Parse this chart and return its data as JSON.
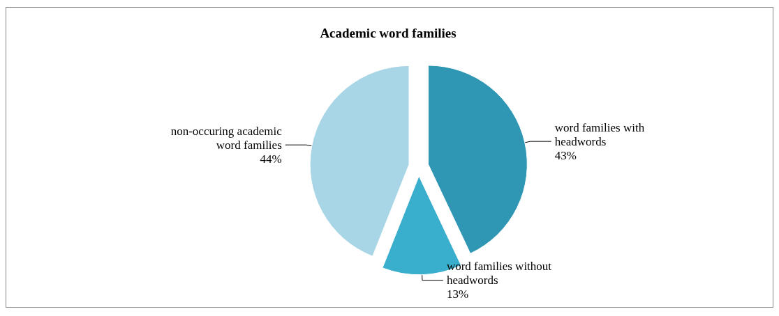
{
  "chart_data": {
    "type": "pie",
    "title": "Academic word families",
    "categories": [
      "word families with headwords",
      "word families without headwords",
      "non-occuring academic word families"
    ],
    "values": [
      43,
      13,
      44
    ],
    "value_labels": [
      "43%",
      "13%",
      "44%"
    ],
    "colors": [
      "#2f97b3",
      "#3aaecd",
      "#a9d6e6"
    ],
    "legend": false
  }
}
